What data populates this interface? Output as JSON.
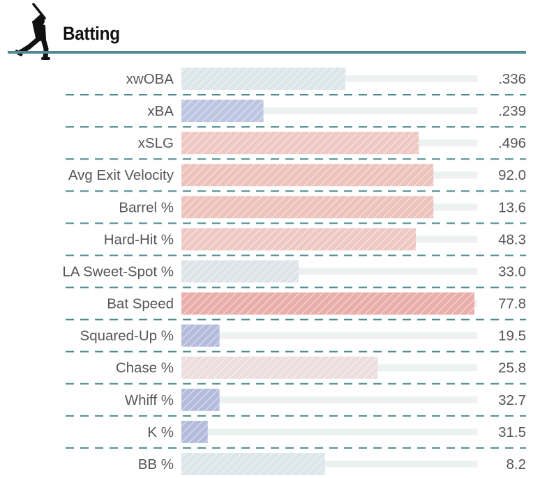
{
  "header": {
    "title": "Batting",
    "icon": "batter-silhouette-icon"
  },
  "colors": {
    "rule": "#4e8a8f",
    "track": "#eef1f1",
    "label": "#575757"
  },
  "chart_data": {
    "type": "bar",
    "orientation": "horizontal",
    "value_kind": "percentile",
    "xlim": [
      0,
      100
    ],
    "rows": [
      {
        "label": "xwOBA",
        "value": ".336",
        "percentile": 56,
        "color": "#dde6ea"
      },
      {
        "label": "xBA",
        "value": ".239",
        "percentile": 28,
        "color": "#bcc6e1"
      },
      {
        "label": "xSLG",
        "value": ".496",
        "percentile": 81,
        "color": "#eec8c2"
      },
      {
        "label": "Avg Exit Velocity",
        "value": "92.0",
        "percentile": 86,
        "color": "#edc3bd"
      },
      {
        "label": "Barrel %",
        "value": "13.6",
        "percentile": 86,
        "color": "#edc3bd"
      },
      {
        "label": "Hard-Hit %",
        "value": "48.3",
        "percentile": 80,
        "color": "#eec9c3"
      },
      {
        "label": "LA Sweet-Spot %",
        "value": "33.0",
        "percentile": 40,
        "color": "#dde4e9"
      },
      {
        "label": "Bat Speed",
        "value": "77.8",
        "percentile": 100,
        "color": "#e9aeaa"
      },
      {
        "label": "Squared-Up %",
        "value": "19.5",
        "percentile": 13,
        "color": "#b3bcdc"
      },
      {
        "label": "Chase %",
        "value": "25.8",
        "percentile": 67,
        "color": "#ecdede"
      },
      {
        "label": "Whiff %",
        "value": "32.7",
        "percentile": 13,
        "color": "#b3bcdc"
      },
      {
        "label": "K %",
        "value": "31.5",
        "percentile": 9,
        "color": "#b3bcdc"
      },
      {
        "label": "BB %",
        "value": "8.2",
        "percentile": 49,
        "color": "#dde6e8"
      }
    ]
  }
}
